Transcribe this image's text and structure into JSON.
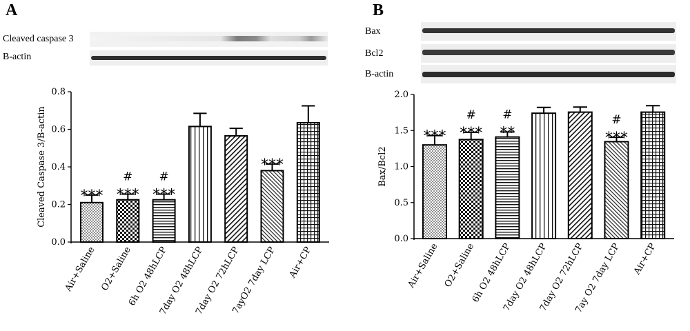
{
  "panels": [
    {
      "letter": "A",
      "blot_labels": [
        "Cleaved caspase 3",
        "B-actin"
      ],
      "chart": {
        "type": "bar",
        "ylabel": "Cleaved Caspase 3/B-actin",
        "xlabel": "",
        "categories": [
          "Air+Saline",
          "O2+Saline",
          "6h O2 48hLCP",
          "7day O2 48hLCP",
          "7day O2 72hLCP",
          "7ayO2 7day LCP",
          "Air+CP"
        ],
        "values": [
          0.21,
          0.225,
          0.225,
          0.615,
          0.565,
          0.38,
          0.635
        ],
        "errors": [
          0.04,
          0.03,
          0.03,
          0.07,
          0.04,
          0.035,
          0.09
        ],
        "sig_stars": [
          "***",
          "***",
          "***",
          "",
          "",
          "***",
          ""
        ],
        "sig_hash": [
          "",
          "#",
          "#",
          "",
          "",
          "",
          ""
        ],
        "patterns": [
          "dots",
          "checker",
          "hstripes",
          "vstripes",
          "diag-right",
          "diag-left",
          "grid"
        ],
        "ylim": [
          0,
          0.8
        ],
        "yticks": [
          "0.0",
          "0.2",
          "0.4",
          "0.6",
          "0.8"
        ],
        "grid": false,
        "legend": "none"
      }
    },
    {
      "letter": "B",
      "blot_labels": [
        "Bax",
        "Bcl2",
        "B-actin"
      ],
      "chart": {
        "type": "bar",
        "ylabel": "Bax/Bcl2",
        "xlabel": "",
        "categories": [
          "Air+Saline",
          "O2+Saline",
          "6h O2 48hLCP",
          "7day O2 48hLCP",
          "7day O2 72hLCP",
          "7ay O2 7day LCP",
          "Air+CP"
        ],
        "values": [
          1.3,
          1.375,
          1.41,
          1.74,
          1.755,
          1.345,
          1.755
        ],
        "errors": [
          0.13,
          0.1,
          0.07,
          0.08,
          0.07,
          0.06,
          0.09
        ],
        "sig_stars": [
          "***",
          "***",
          "**",
          "",
          "",
          "***",
          ""
        ],
        "sig_hash": [
          "",
          "#",
          "#",
          "",
          "",
          "#",
          ""
        ],
        "patterns": [
          "dots",
          "checker",
          "hstripes",
          "vstripes",
          "diag-right",
          "diag-left",
          "grid"
        ],
        "ylim": [
          0,
          2.0
        ],
        "yticks": [
          "0.0",
          "0.5",
          "1.0",
          "1.5",
          "2.0"
        ],
        "grid": false,
        "legend": "none"
      }
    }
  ]
}
